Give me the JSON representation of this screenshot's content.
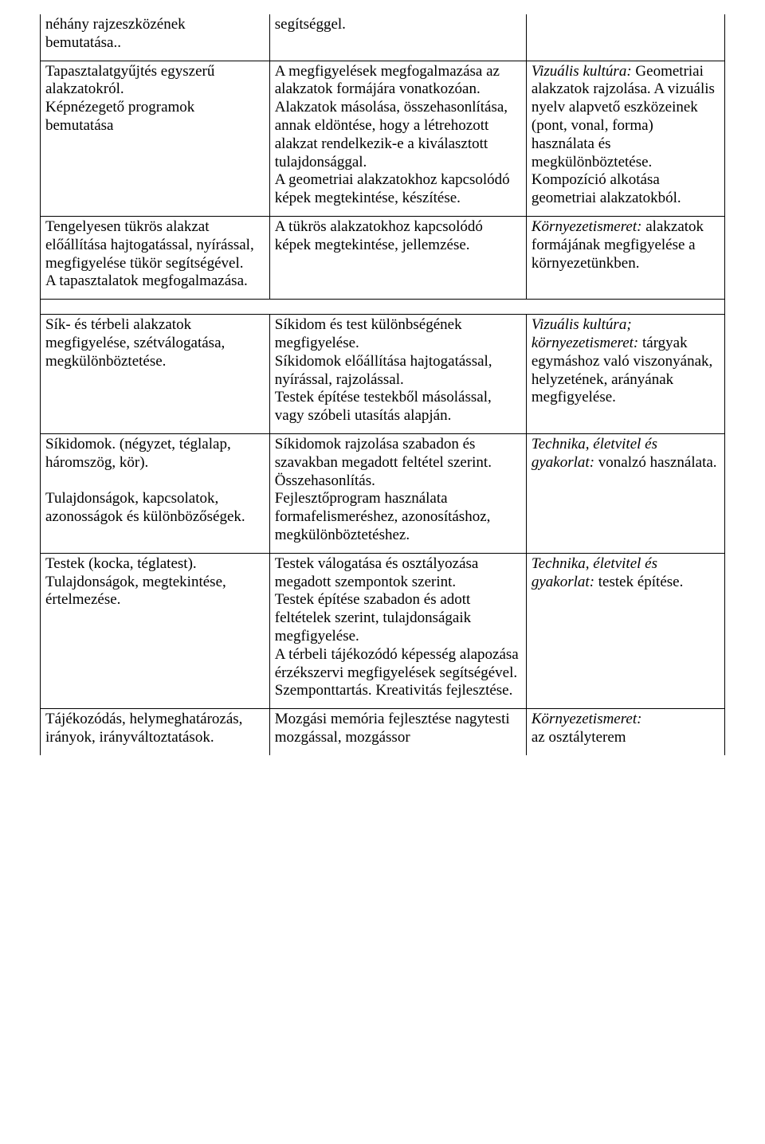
{
  "rows": [
    {
      "c1": "néhány rajzeszközének bemutatása..",
      "c2": "segítséggel.",
      "c3": ""
    },
    {
      "c1": "Tapasztalatgyűjtés egyszerű alakzatokról.\nKépnézegető programok bemutatása",
      "c2": "A megfigyelések megfogalmazása az alakzatok formájára vonatkozóan.\nAlakzatok másolása, összehasonlítása, annak eldöntése, hogy a létrehozott alakzat rendelkezik-e a kiválasztott tulajdonsággal.\nA geometriai alakzatokhoz kapcsolódó képek megtekintése, készítése.",
      "c3_italic": "Vizuális kultúra:",
      "c3_rest": " Geometriai alakzatok rajzolása. A vizuális nyelv alapvető eszközeinek (pont, vonal, forma) használata és megkülönböztetése. Kompozíció alkotása geometriai alakzatokból."
    },
    {
      "c1": "Tengelyesen tükrös alakzat előállítása hajtogatással, nyírással, megfigyelése tükör segítségével.\nA tapasztalatok megfogalmazása.",
      "c2": "A tükrös alakzatokhoz kapcsolódó képek megtekintése, jellemzése.",
      "c3_italic": "Környezetismeret:",
      "c3_rest": " alakzatok formájának megfigyelése a környezetünkben."
    },
    {
      "c1": "Sík- és térbeli alakzatok megfigyelése, szétválogatása, megkülönböztetése.",
      "c2": "Síkidom és test különbségének megfigyelése.\nSíkidomok előállítása hajtogatással, nyírással, rajzolással.\nTestek építése testekből másolással, vagy szóbeli utasítás alapján.",
      "c3_italic": "Vizuális kultúra; környezetismeret:",
      "c3_rest": " tárgyak egymáshoz való viszonyának, helyzetének, arányának megfigyelése."
    },
    {
      "c1": "Síkidomok. (négyzet, téglalap, háromszög, kör).\n\nTulajdonságok, kapcsolatok, azonosságok és különbözőségek.",
      "c2": "Síkidomok rajzolása szabadon és szavakban megadott feltétel szerint.\nÖsszehasonlítás.\nFejlesztőprogram használata formafelismeréshez, azonosításhoz, megkülönböztetéshez.",
      "c3_italic": "Technika, életvitel és gyakorlat:",
      "c3_rest": " vonalzó használata."
    },
    {
      "c1": "Testek (kocka, téglatest). Tulajdonságok, megtekintése, értelmezése.",
      "c2": "Testek válogatása és osztályozása megadott szempontok szerint.\nTestek építése szabadon és adott feltételek szerint, tulajdonságaik megfigyelése.\nA térbeli tájékozódó képesség alapozása érzékszervi megfigyelések segítségével. Szemponttartás. Kreativitás fejlesztése.",
      "c3_italic": "Technika, életvitel és gyakorlat:",
      "c3_rest": " testek építése."
    },
    {
      "c1": "Tájékozódás, helymeghatározás, irányok, irányváltoztatások.",
      "c2": "Mozgási memória fejlesztése nagytesti mozgással, mozgássor",
      "c3_italic": "Környezetismeret:",
      "c3_rest": "\naz osztályterem"
    }
  ]
}
